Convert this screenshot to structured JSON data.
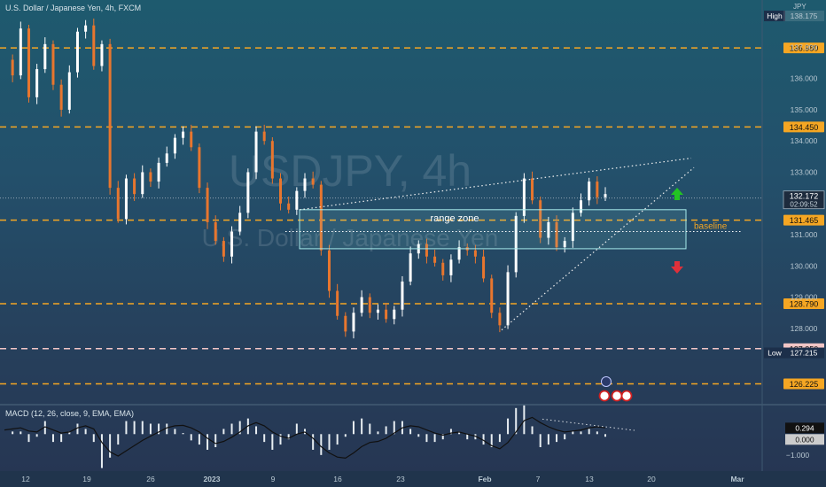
{
  "header": {
    "symbol_line": "U.S. Dollar / Japanese Yen, 4h, FXCM",
    "currency": "JPY"
  },
  "watermark": {
    "ticker": "USDJPY, 4h",
    "name": "U.S. Dollar / Japanese Yen"
  },
  "chart_data": {
    "type": "candlestick",
    "title": "U.S. Dollar / Japanese Yen, 4h, FXCM",
    "x_ticks": [
      "12",
      "19",
      "26",
      "2023",
      "9",
      "16",
      "23",
      "Feb",
      "7",
      "13",
      "20",
      "Mar"
    ],
    "y_ticks": [
      "128.000",
      "129.000",
      "130.000",
      "131.000",
      "132.000",
      "133.000",
      "134.000",
      "135.000",
      "136.000",
      "137.000"
    ],
    "ylim": [
      125.7,
      138.4
    ],
    "close_series": [
      136.6,
      136.1,
      137.6,
      135.4,
      136.3,
      137.1,
      135.8,
      135.0,
      136.2,
      137.5,
      137.7,
      136.4,
      137.1,
      132.5,
      131.5,
      132.8,
      132.3,
      133.0,
      132.7,
      133.3,
      133.6,
      134.1,
      134.3,
      133.8,
      132.5,
      131.4,
      130.8,
      130.3,
      131.1,
      131.7,
      133.0,
      134.3,
      134.0,
      132.8,
      132.0,
      131.8,
      132.4,
      132.8,
      132.6,
      130.5,
      129.2,
      128.4,
      127.9,
      128.5,
      129.0,
      128.5,
      128.6,
      128.3,
      128.6,
      129.5,
      130.4,
      130.7,
      130.3,
      130.1,
      129.7,
      130.2,
      130.6,
      130.5,
      130.3,
      129.6,
      128.5,
      128.1,
      129.8,
      131.6,
      132.8,
      132.1,
      130.9,
      131.4,
      130.6,
      130.8,
      131.7,
      132.1,
      132.7,
      132.2,
      132.3
    ],
    "levels": [
      {
        "label": "136.980",
        "value": 136.98,
        "color": "#f5a623"
      },
      {
        "label": "134.450",
        "value": 134.45,
        "color": "#f5a623"
      },
      {
        "label": "131.465",
        "value": 131.465,
        "color": "#f5a623"
      },
      {
        "label": "128.790",
        "value": 128.79,
        "color": "#f5a623"
      },
      {
        "label": "127.350",
        "value": 127.35,
        "color": "#f2c6c6"
      },
      {
        "label": "126.225",
        "value": 126.225,
        "color": "#f5a623"
      }
    ],
    "last_price": {
      "label": "132.172",
      "countdown": "02:09:52",
      "value": 132.172
    },
    "high": {
      "label": "High",
      "value_label": "138.175"
    },
    "low": {
      "label": "Low",
      "value_label": "127.215"
    },
    "annotations": [
      {
        "text": "range zone",
        "kind": "rectangle",
        "y_range": [
          130.55,
          131.8
        ]
      },
      {
        "text": "baseline",
        "kind": "dotted-line",
        "value": 131.1
      }
    ],
    "indicator": {
      "name": "MACD (12, 26, close, 9, EMA, EMA)",
      "value_label": "0.294",
      "zero_label": "0.000",
      "tick_label": "−1.000",
      "ylim": [
        -1.6,
        1.2
      ],
      "macd_line": [
        0.2,
        0.25,
        0.3,
        0.15,
        0.1,
        0.35,
        0.2,
        0.05,
        0.1,
        0.3,
        0.4,
        0.25,
        -0.4,
        -0.85,
        -1.05,
        -0.8,
        -0.55,
        -0.3,
        -0.1,
        0.1,
        0.3,
        0.4,
        0.42,
        0.3,
        0.1,
        -0.2,
        -0.45,
        -0.35,
        -0.15,
        0.1,
        0.4,
        0.55,
        0.4,
        0.1,
        -0.1,
        -0.2,
        0.0,
        0.1,
        -0.2,
        -0.6,
        -0.9,
        -1.1,
        -1.15,
        -0.9,
        -0.6,
        -0.4,
        -0.35,
        -0.2,
        0.05,
        0.3,
        0.4,
        0.35,
        0.2,
        0.05,
        -0.05,
        0.05,
        0.1,
        0.0,
        -0.1,
        -0.3,
        -0.55,
        -0.7,
        -0.4,
        0.1,
        0.65,
        0.8,
        0.55,
        0.35,
        0.2,
        0.1,
        0.15,
        0.2,
        0.3,
        0.35,
        0.3
      ]
    },
    "colors": {
      "up": "#ffffff",
      "down": "#e8762e",
      "level": "#f5a623",
      "macd": "#111111",
      "trend": "#f0f0f0",
      "arrow_up": "#22c422",
      "arrow_down": "#e0303a"
    }
  }
}
